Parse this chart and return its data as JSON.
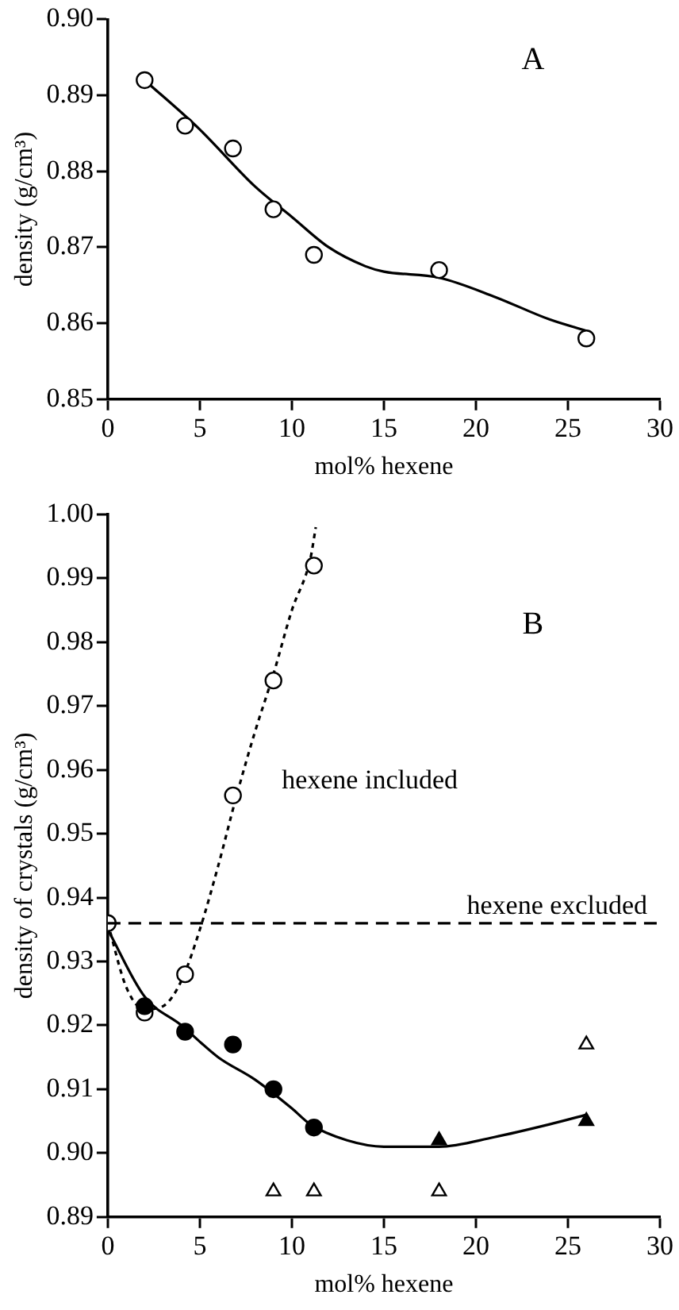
{
  "chart_data": [
    {
      "type": "scatter",
      "title": "A",
      "xlabel": "mol% hexene",
      "ylabel": "density (g/cm³)",
      "xlim": [
        0,
        30
      ],
      "xticks": [
        0,
        5,
        10,
        15,
        20,
        25,
        30
      ],
      "ylim": [
        0.85,
        0.9
      ],
      "yticks": [
        {
          "value": 0.85,
          "label": "0.85"
        },
        {
          "value": 0.86,
          "label": "0.86"
        },
        {
          "value": 0.87,
          "label": "0.87"
        },
        {
          "value": 0.88,
          "label": "0.88"
        },
        {
          "value": 0.89,
          "label": "0.89"
        },
        {
          "value": 0.9,
          "label": "0.90"
        }
      ],
      "grid": false,
      "legend": false,
      "series": [
        {
          "type": "line",
          "color": "#000000",
          "line_style": "solid",
          "x": [
            2,
            5,
            8,
            10,
            12,
            14,
            15,
            18,
            21,
            24,
            26
          ],
          "values": [
            0.892,
            0.8855,
            0.878,
            0.874,
            0.87,
            0.8675,
            0.8668,
            0.866,
            0.8635,
            0.8605,
            0.859
          ]
        },
        {
          "type": "scatter",
          "color": "#ffffff",
          "marker": "circle",
          "x": [
            2,
            4.2,
            6.8,
            9,
            11.2,
            18,
            26
          ],
          "values": [
            0.892,
            0.886,
            0.883,
            0.875,
            0.869,
            0.867,
            0.858
          ]
        }
      ]
    },
    {
      "type": "scatter",
      "title": "B",
      "xlabel": "mol% hexene",
      "ylabel": "density of crystals (g/cm³)",
      "xlim": [
        0,
        30
      ],
      "xticks": [
        0,
        5,
        10,
        15,
        20,
        25,
        30
      ],
      "ylim": [
        0.89,
        1.0
      ],
      "yticks": [
        {
          "value": 0.89,
          "label": "0.89"
        },
        {
          "value": 0.9,
          "label": "0.90"
        },
        {
          "value": 0.91,
          "label": "0.91"
        },
        {
          "value": 0.92,
          "label": "0.92"
        },
        {
          "value": 0.93,
          "label": "0.93"
        },
        {
          "value": 0.94,
          "label": "0.94"
        },
        {
          "value": 0.95,
          "label": "0.95"
        },
        {
          "value": 0.96,
          "label": "0.96"
        },
        {
          "value": 0.97,
          "label": "0.97"
        },
        {
          "value": 0.98,
          "label": "0.98"
        },
        {
          "value": 0.99,
          "label": "0.99"
        },
        {
          "value": 1.0,
          "label": "1.00"
        }
      ],
      "grid": false,
      "legend": false,
      "ref_lines": [
        {
          "axis": "y",
          "value": 0.936,
          "label": "hexene excluded",
          "color": "#000000",
          "line_style": "dashed"
        }
      ],
      "annotations": [
        "hexene included"
      ],
      "series": [
        {
          "type": "line",
          "color": "#000000",
          "line_style": "dotted",
          "x": [
            0,
            1,
            2,
            3,
            4,
            5,
            6,
            7,
            8,
            9,
            10,
            11,
            11.3
          ],
          "values": [
            0.936,
            0.926,
            0.9225,
            0.923,
            0.927,
            0.935,
            0.945,
            0.956,
            0.966,
            0.975,
            0.985,
            0.993,
            0.998
          ]
        },
        {
          "type": "line",
          "color": "#000000",
          "line_style": "solid",
          "x": [
            0,
            2,
            4,
            6,
            8,
            10,
            11,
            13,
            15,
            18,
            21,
            24,
            26
          ],
          "values": [
            0.935,
            0.9245,
            0.92,
            0.915,
            0.9115,
            0.907,
            0.9045,
            0.902,
            0.901,
            0.901,
            0.9025,
            0.9045,
            0.906
          ]
        },
        {
          "type": "scatter",
          "color": "#ffffff",
          "marker": "circle",
          "x": [
            0,
            2,
            4.2,
            6.8,
            9,
            11.2
          ],
          "values": [
            0.936,
            0.922,
            0.928,
            0.956,
            0.974,
            0.992
          ]
        },
        {
          "type": "scatter",
          "color": "#000000",
          "marker": "circle",
          "x": [
            2,
            4.2,
            6.8,
            9,
            11.2
          ],
          "values": [
            0.923,
            0.919,
            0.917,
            0.91,
            0.904
          ]
        },
        {
          "type": "scatter",
          "color": "#000000",
          "marker": "triangle",
          "x": [
            18,
            26
          ],
          "values": [
            0.902,
            0.905
          ]
        },
        {
          "type": "scatter",
          "color": "#ffffff",
          "marker": "triangle",
          "x": [
            9,
            11.2,
            18,
            26
          ],
          "values": [
            0.894,
            0.894,
            0.894,
            0.917
          ]
        }
      ]
    }
  ]
}
